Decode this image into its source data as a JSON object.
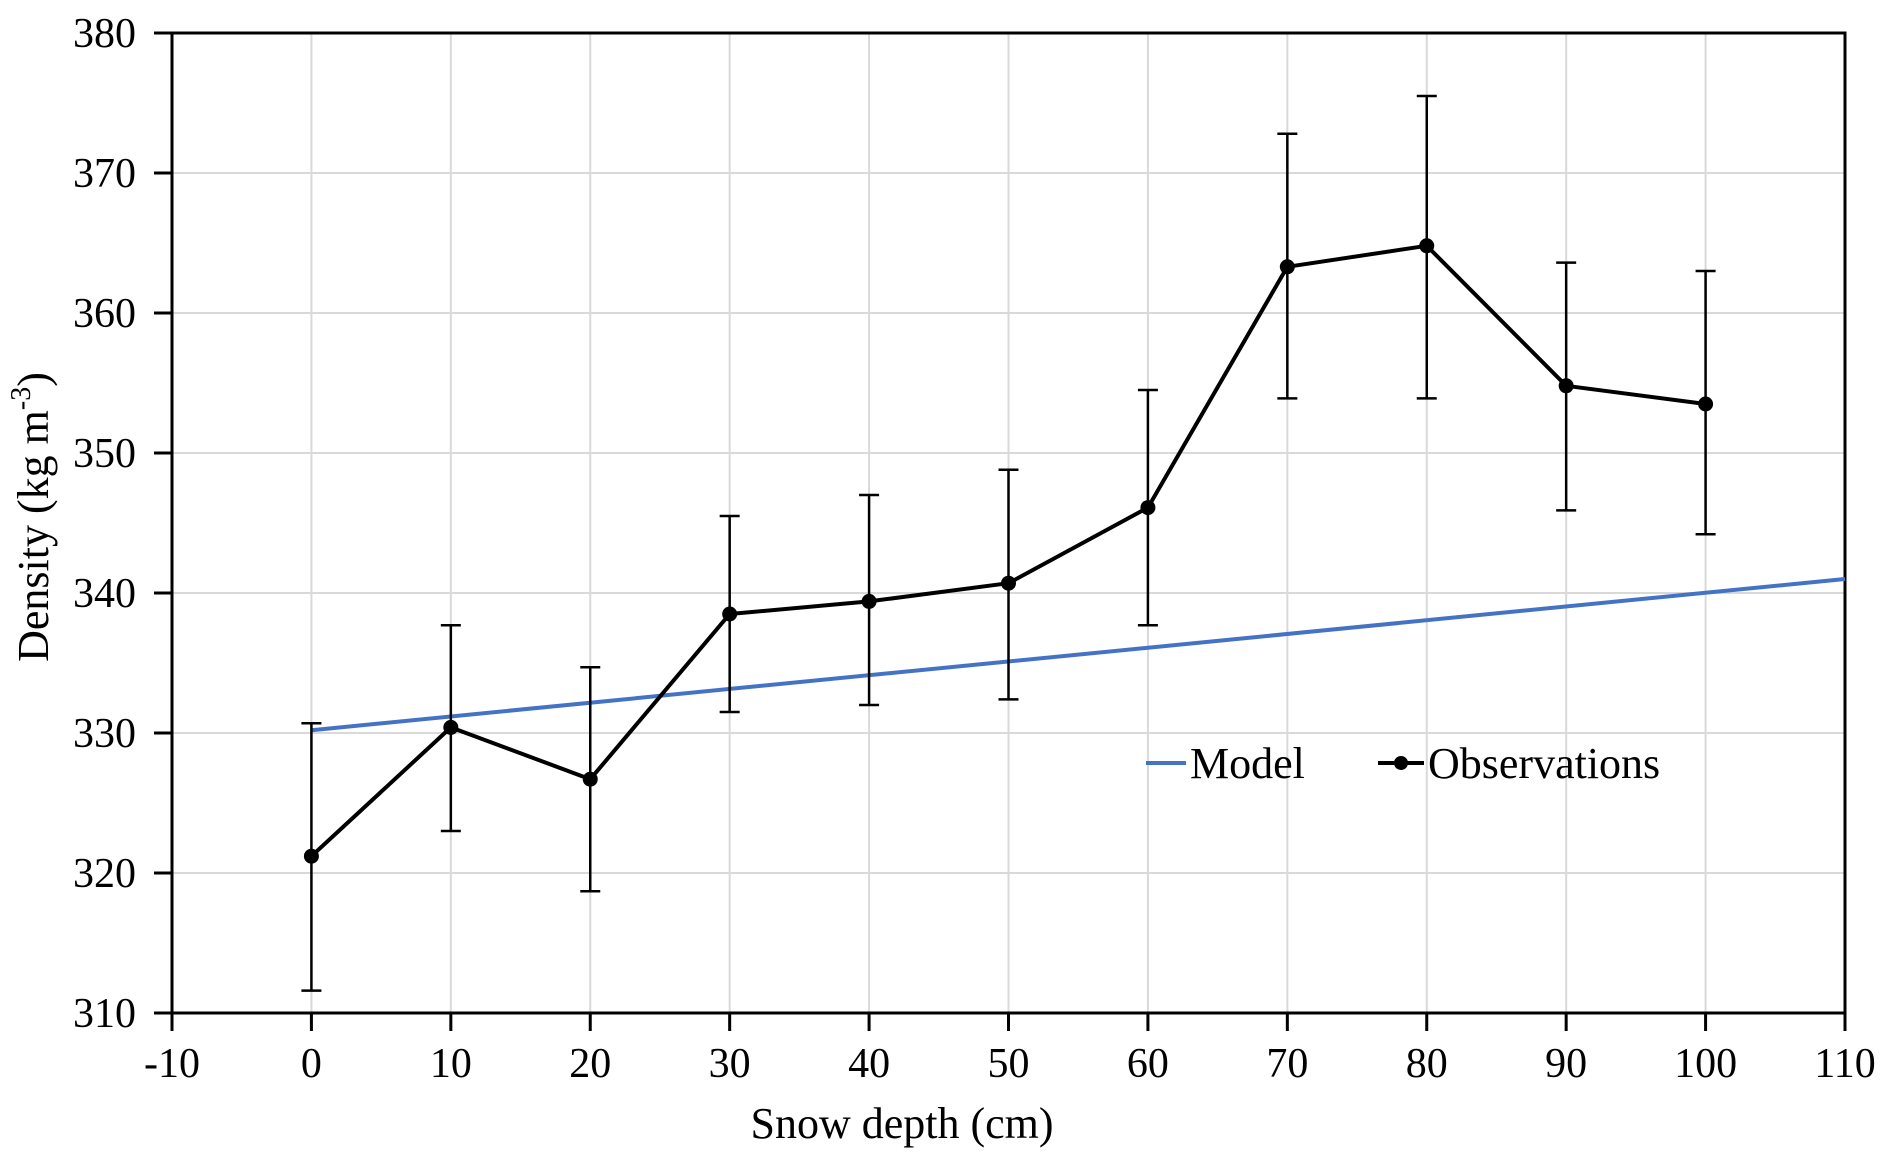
{
  "chart_data": {
    "type": "line",
    "title": "",
    "xlabel": "Snow depth (cm)",
    "ylabel": "Density (kg m-3)",
    "ylabel_prefix": "Density (kg m",
    "ylabel_sup": "-3",
    "ylabel_suffix": ")",
    "xlim": [
      -10,
      110
    ],
    "ylim": [
      310,
      380
    ],
    "x_ticks": [
      -10,
      0,
      10,
      20,
      30,
      40,
      50,
      60,
      70,
      80,
      90,
      100,
      110
    ],
    "y_ticks": [
      310,
      320,
      330,
      340,
      350,
      360,
      370,
      380
    ],
    "grid": true,
    "legend_position": "inside-bottom-right",
    "series": [
      {
        "name": "Model",
        "style": "line",
        "color": "#4472C4",
        "x": [
          0,
          110
        ],
        "y": [
          330.2,
          341.0
        ]
      },
      {
        "name": "Observations",
        "style": "line-markers-errorbars",
        "color": "#000000",
        "x": [
          0,
          10,
          20,
          30,
          40,
          50,
          60,
          70,
          80,
          90,
          100
        ],
        "y": [
          321.2,
          330.4,
          326.7,
          338.5,
          339.4,
          340.7,
          346.1,
          363.3,
          364.8,
          354.8,
          353.5
        ],
        "err_hi": [
          330.7,
          337.7,
          334.7,
          345.5,
          347.0,
          348.8,
          354.5,
          372.8,
          375.5,
          363.6,
          363.0
        ],
        "err_lo": [
          311.6,
          323.0,
          318.7,
          331.5,
          332.0,
          332.4,
          337.7,
          353.9,
          353.9,
          345.9,
          344.2
        ]
      }
    ],
    "colors": {
      "grid": "#D9D9D9",
      "axis": "#000000",
      "text": "#000000",
      "background": "#FFFFFF"
    }
  }
}
